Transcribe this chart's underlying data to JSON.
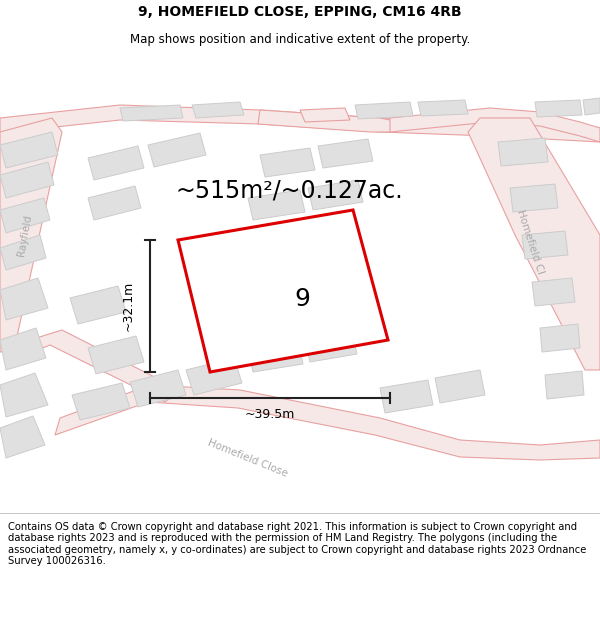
{
  "title_line1": "9, HOMEFIELD CLOSE, EPPING, CM16 4RB",
  "title_line2": "Map shows position and indicative extent of the property.",
  "area_label": "~515m²/~0.127ac.",
  "plot_number": "9",
  "dim_width": "~39.5m",
  "dim_height": "~32.1m",
  "footer_text": "Contains OS data © Crown copyright and database right 2021. This information is subject to Crown copyright and database rights 2023 and is reproduced with the permission of HM Land Registry. The polygons (including the associated geometry, namely x, y co-ordinates) are subject to Crown copyright and database rights 2023 Ordnance Survey 100026316.",
  "map_bg": "#ffffff",
  "road_stroke": "#e8a0a0",
  "road_fill": "#f7e8e8",
  "building_stroke": "#cccccc",
  "building_fill": "#e0e0e0",
  "plot_outline_color": "#dd0000",
  "dim_line_color": "#222222",
  "road_label_color": "#aaaaaa",
  "title_fontsize": 10,
  "subtitle_fontsize": 8.5,
  "area_fontsize": 17,
  "plot_num_fontsize": 18,
  "dim_fontsize": 9,
  "footer_fontsize": 7.2
}
